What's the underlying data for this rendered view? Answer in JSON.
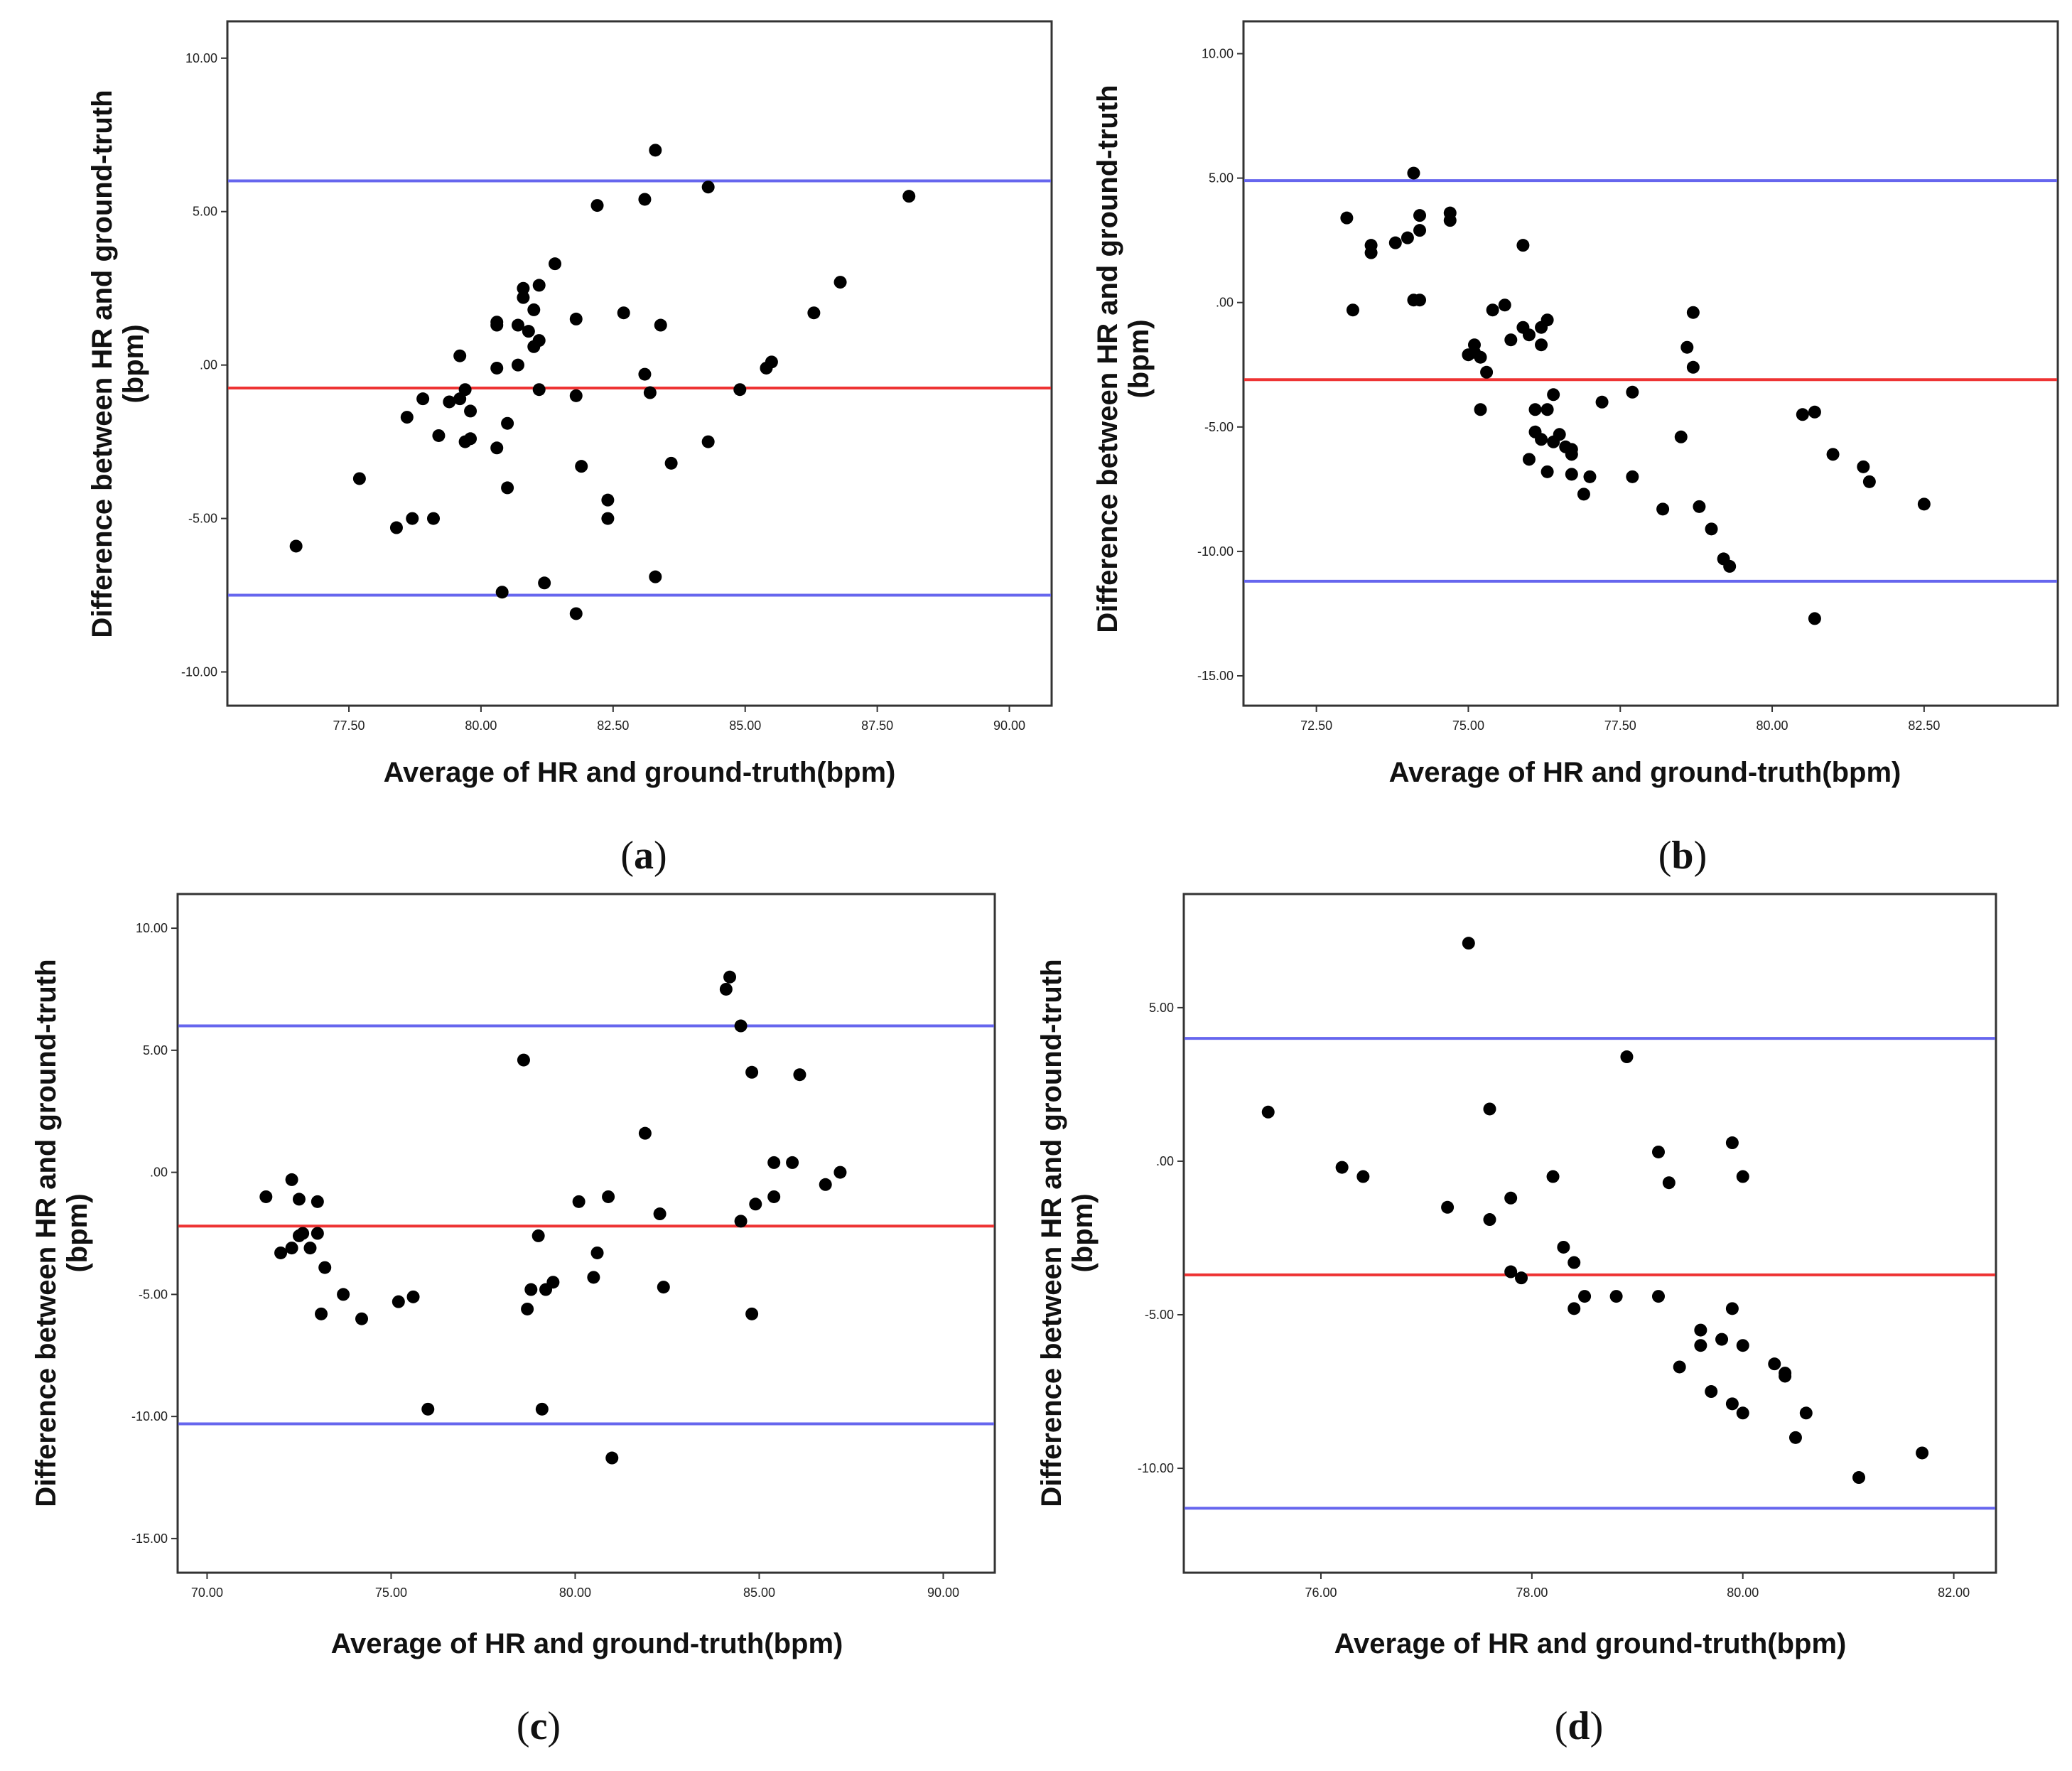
{
  "chart_data": [
    {
      "panel": "a",
      "type": "scatter",
      "xlabel": "Average of HR and ground-truth(bpm)",
      "ylabel_lines": [
        "Difference between HR and ground-truth",
        "(bpm)"
      ],
      "xlim": [
        75.2,
        90.8
      ],
      "ylim": [
        -11.1,
        11.2
      ],
      "xticks": [
        "77.50",
        "80.00",
        "82.50",
        "85.00",
        "87.50",
        "90.00"
      ],
      "yticks": [
        "10.00",
        "5.00",
        ".00",
        "-5.00",
        "-10.00"
      ],
      "mean_line": -0.75,
      "upper_limit": 6.0,
      "lower_limit": -7.5,
      "line_colors": {
        "mean": "#ee3333",
        "limits": "#6666ee"
      },
      "points": [
        [
          76.5,
          -5.9
        ],
        [
          77.7,
          -3.7
        ],
        [
          78.4,
          -5.3
        ],
        [
          78.6,
          -1.7
        ],
        [
          78.7,
          -5.0
        ],
        [
          78.9,
          -1.1
        ],
        [
          79.1,
          -5.0
        ],
        [
          79.2,
          -2.3
        ],
        [
          79.4,
          -1.2
        ],
        [
          79.6,
          0.3
        ],
        [
          79.6,
          -1.1
        ],
        [
          79.7,
          -2.5
        ],
        [
          79.7,
          -0.8
        ],
        [
          79.8,
          -1.5
        ],
        [
          79.8,
          -2.4
        ],
        [
          80.3,
          1.3
        ],
        [
          80.3,
          1.4
        ],
        [
          80.3,
          -0.1
        ],
        [
          80.3,
          -2.7
        ],
        [
          80.4,
          -7.4
        ],
        [
          80.5,
          -1.9
        ],
        [
          80.5,
          -4.0
        ],
        [
          80.7,
          1.3
        ],
        [
          80.7,
          0.0
        ],
        [
          80.8,
          2.5
        ],
        [
          80.8,
          2.2
        ],
        [
          80.9,
          1.1
        ],
        [
          81.0,
          1.8
        ],
        [
          81.0,
          0.6
        ],
        [
          81.1,
          2.6
        ],
        [
          81.1,
          0.8
        ],
        [
          81.1,
          -0.8
        ],
        [
          81.2,
          -7.1
        ],
        [
          81.4,
          3.3
        ],
        [
          81.8,
          1.5
        ],
        [
          81.8,
          -1.0
        ],
        [
          81.8,
          -8.1
        ],
        [
          81.9,
          -3.3
        ],
        [
          82.2,
          5.2
        ],
        [
          82.4,
          -4.4
        ],
        [
          82.4,
          -5.0
        ],
        [
          82.7,
          1.7
        ],
        [
          83.1,
          -0.3
        ],
        [
          83.1,
          5.4
        ],
        [
          83.2,
          -0.9
        ],
        [
          83.3,
          -6.9
        ],
        [
          83.3,
          7.0
        ],
        [
          83.4,
          1.3
        ],
        [
          83.6,
          -3.2
        ],
        [
          84.3,
          5.8
        ],
        [
          84.3,
          -2.5
        ],
        [
          84.9,
          -0.8
        ],
        [
          85.4,
          -0.1
        ],
        [
          85.5,
          0.1
        ],
        [
          86.3,
          1.7
        ],
        [
          86.8,
          2.7
        ],
        [
          88.1,
          5.5
        ]
      ]
    },
    {
      "panel": "b",
      "type": "scatter",
      "xlabel": "Average of HR and ground-truth(bpm)",
      "ylabel_lines": [
        "Difference between HR and ground-truth",
        "(bpm)"
      ],
      "xlim": [
        71.3,
        84.7
      ],
      "ylim": [
        -16.2,
        11.3
      ],
      "xticks": [
        "72.50",
        "75.00",
        "77.50",
        "80.00",
        "82.50"
      ],
      "yticks": [
        "10.00",
        "5.00",
        ".00",
        "-5.00",
        "-10.00",
        "-15.00"
      ],
      "mean_line": -3.1,
      "upper_limit": 4.9,
      "lower_limit": -11.2,
      "line_colors": {
        "mean": "#ee3333",
        "limits": "#6666ee"
      },
      "points": [
        [
          73.0,
          3.4
        ],
        [
          73.1,
          -0.3
        ],
        [
          73.4,
          2.3
        ],
        [
          73.4,
          2.0
        ],
        [
          73.8,
          2.4
        ],
        [
          74.0,
          2.6
        ],
        [
          74.1,
          0.1
        ],
        [
          74.1,
          5.2
        ],
        [
          74.2,
          3.5
        ],
        [
          74.2,
          2.9
        ],
        [
          74.2,
          0.1
        ],
        [
          74.7,
          3.6
        ],
        [
          74.7,
          3.3
        ],
        [
          75.0,
          -2.1
        ],
        [
          75.1,
          -1.7
        ],
        [
          75.1,
          -2.0
        ],
        [
          75.2,
          -2.2
        ],
        [
          75.2,
          -4.3
        ],
        [
          75.3,
          -2.8
        ],
        [
          75.4,
          -0.3
        ],
        [
          75.6,
          -0.1
        ],
        [
          75.7,
          -1.5
        ],
        [
          75.9,
          2.3
        ],
        [
          75.9,
          -1.0
        ],
        [
          76.0,
          -1.3
        ],
        [
          76.0,
          -6.3
        ],
        [
          76.1,
          -5.2
        ],
        [
          76.1,
          -4.3
        ],
        [
          76.2,
          -1.0
        ],
        [
          76.2,
          -5.5
        ],
        [
          76.2,
          -1.7
        ],
        [
          76.3,
          -0.7
        ],
        [
          76.3,
          -4.3
        ],
        [
          76.3,
          -6.8
        ],
        [
          76.4,
          -3.7
        ],
        [
          76.4,
          -5.6
        ],
        [
          76.5,
          -5.3
        ],
        [
          76.6,
          -5.8
        ],
        [
          76.7,
          -6.1
        ],
        [
          76.7,
          -5.9
        ],
        [
          76.7,
          -6.9
        ],
        [
          76.9,
          -7.7
        ],
        [
          77.0,
          -7.0
        ],
        [
          77.2,
          -4.0
        ],
        [
          77.7,
          -3.6
        ],
        [
          77.7,
          -7.0
        ],
        [
          78.2,
          -8.3
        ],
        [
          78.5,
          -5.4
        ],
        [
          78.6,
          -1.8
        ],
        [
          78.7,
          -0.4
        ],
        [
          78.7,
          -2.6
        ],
        [
          78.8,
          -8.2
        ],
        [
          79.0,
          -9.1
        ],
        [
          79.2,
          -10.3
        ],
        [
          79.3,
          -10.6
        ],
        [
          80.5,
          -4.5
        ],
        [
          80.7,
          -4.4
        ],
        [
          80.7,
          -12.7
        ],
        [
          81.0,
          -6.1
        ],
        [
          81.5,
          -6.6
        ],
        [
          81.6,
          -7.2
        ],
        [
          82.5,
          -8.1
        ]
      ]
    },
    {
      "panel": "c",
      "type": "scatter",
      "xlabel": "Average of HR and ground-truth(bpm)",
      "ylabel_lines": [
        "Difference between HR and ground-truth",
        "(bpm)"
      ],
      "xlim": [
        69.2,
        91.4
      ],
      "ylim": [
        -16.4,
        11.4
      ],
      "xticks": [
        "70.00",
        "75.00",
        "80.00",
        "85.00",
        "90.00"
      ],
      "yticks": [
        "10.00",
        "5.00",
        ".00",
        "-5.00",
        "-10.00",
        "-15.00"
      ],
      "mean_line": -2.2,
      "upper_limit": 6.0,
      "lower_limit": -10.3,
      "line_colors": {
        "mean": "#ee3333",
        "limits": "#6666ee"
      },
      "points": [
        [
          71.6,
          -1.0
        ],
        [
          72.0,
          -3.3
        ],
        [
          72.3,
          -0.3
        ],
        [
          72.3,
          -3.1
        ],
        [
          72.5,
          -1.1
        ],
        [
          72.5,
          -2.6
        ],
        [
          72.6,
          -2.5
        ],
        [
          72.8,
          -3.1
        ],
        [
          73.0,
          -1.2
        ],
        [
          73.0,
          -2.5
        ],
        [
          73.1,
          -5.8
        ],
        [
          73.2,
          -3.9
        ],
        [
          73.7,
          -5.0
        ],
        [
          74.2,
          -6.0
        ],
        [
          75.2,
          -5.3
        ],
        [
          75.6,
          -5.1
        ],
        [
          76.0,
          -9.7
        ],
        [
          78.6,
          4.6
        ],
        [
          78.7,
          -5.6
        ],
        [
          78.8,
          -4.8
        ],
        [
          79.0,
          -2.6
        ],
        [
          79.1,
          -9.7
        ],
        [
          79.2,
          -4.8
        ],
        [
          79.4,
          -4.5
        ],
        [
          80.1,
          -1.2
        ],
        [
          80.5,
          -4.3
        ],
        [
          80.6,
          -3.3
        ],
        [
          80.9,
          -1.0
        ],
        [
          81.0,
          -11.7
        ],
        [
          81.9,
          1.6
        ],
        [
          82.3,
          -1.7
        ],
        [
          82.4,
          -4.7
        ],
        [
          84.1,
          7.5
        ],
        [
          84.2,
          8.0
        ],
        [
          84.5,
          6.0
        ],
        [
          84.5,
          -2.0
        ],
        [
          84.8,
          -5.8
        ],
        [
          84.8,
          4.1
        ],
        [
          84.9,
          -1.3
        ],
        [
          85.4,
          -1.0
        ],
        [
          85.4,
          0.4
        ],
        [
          85.9,
          0.4
        ],
        [
          86.1,
          4.0
        ],
        [
          86.8,
          -0.5
        ],
        [
          87.2,
          0.0
        ]
      ]
    },
    {
      "panel": "d",
      "type": "scatter",
      "xlabel": "Average of HR and ground-truth(bpm)",
      "ylabel_lines": [
        "Difference between HR and ground-truth",
        "(bpm)"
      ],
      "xlim": [
        74.7,
        82.4
      ],
      "ylim": [
        -13.4,
        8.7
      ],
      "xticks": [
        "76.00",
        "78.00",
        "80.00",
        "82.00"
      ],
      "yticks": [
        "5.00",
        ".00",
        "-5.00",
        "-10.00"
      ],
      "mean_line": -3.7,
      "upper_limit": 4.0,
      "lower_limit": -11.3,
      "line_colors": {
        "mean": "#ee3333",
        "limits": "#6666ee"
      },
      "points": [
        [
          75.5,
          1.6
        ],
        [
          76.2,
          -0.2
        ],
        [
          76.4,
          -0.5
        ],
        [
          77.2,
          -1.5
        ],
        [
          77.4,
          7.1
        ],
        [
          77.6,
          -1.9
        ],
        [
          77.6,
          1.7
        ],
        [
          77.8,
          -1.2
        ],
        [
          77.8,
          -3.6
        ],
        [
          77.9,
          -3.8
        ],
        [
          78.2,
          -0.5
        ],
        [
          78.3,
          -2.8
        ],
        [
          78.4,
          -3.3
        ],
        [
          78.4,
          -4.8
        ],
        [
          78.5,
          -4.4
        ],
        [
          78.8,
          -4.4
        ],
        [
          78.9,
          3.4
        ],
        [
          79.2,
          -4.4
        ],
        [
          79.2,
          0.3
        ],
        [
          79.3,
          -0.7
        ],
        [
          79.4,
          -6.7
        ],
        [
          79.6,
          -5.5
        ],
        [
          79.6,
          -6.0
        ],
        [
          79.7,
          -7.5
        ],
        [
          79.8,
          -5.8
        ],
        [
          79.9,
          -7.9
        ],
        [
          79.9,
          0.6
        ],
        [
          79.9,
          -4.8
        ],
        [
          80.0,
          -6.0
        ],
        [
          80.0,
          -0.5
        ],
        [
          80.0,
          -8.2
        ],
        [
          80.3,
          -6.6
        ],
        [
          80.4,
          -7.0
        ],
        [
          80.4,
          -6.9
        ],
        [
          80.5,
          -9.0
        ],
        [
          80.6,
          -8.2
        ],
        [
          81.1,
          -10.3
        ],
        [
          81.7,
          -9.5
        ]
      ]
    }
  ],
  "panel_labels": [
    {
      "open": "(",
      "letter": "a",
      "close": ")"
    },
    {
      "open": "(",
      "letter": "b",
      "close": ")"
    },
    {
      "open": "(",
      "letter": "c",
      "close": ")"
    },
    {
      "open": "(",
      "letter": "d",
      "close": ")"
    }
  ]
}
